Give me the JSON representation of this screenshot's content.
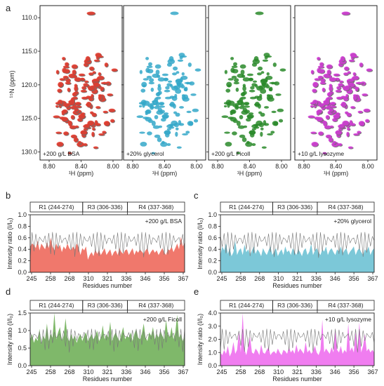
{
  "panel_letters": [
    "a",
    "b",
    "c",
    "d",
    "e"
  ],
  "nmr": {
    "ylabel": "¹⁵N (ppm)",
    "xlabel": "¹H (ppm)",
    "yticks": [
      "110.0",
      "115.0",
      "120.0",
      "125.0",
      "130.0"
    ],
    "xticks": [
      "8.80",
      "8.40",
      "8.00"
    ],
    "panels": [
      {
        "label": "+200 g/L BSA",
        "color": "#e8392c"
      },
      {
        "label": "+20% glycerol",
        "color": "#35a8c9"
      },
      {
        "label": "+200 g/L Ficoll",
        "color": "#2a8a2a"
      },
      {
        "label": "+10 g/L lysozyme",
        "color": "#d53ad8"
      }
    ]
  },
  "chart_data": [
    {
      "type": "area",
      "panel": "b",
      "label": "+200 g/L BSA",
      "color": "#f0786c",
      "ylabel": "Intensity ratio (I/I₀)",
      "xlabel": "Residues number",
      "xticks": [
        "245",
        "258",
        "268",
        "310",
        "321",
        "336",
        "346",
        "356",
        "367"
      ],
      "ylim": [
        0,
        1.0
      ],
      "yticks": [
        "0.0",
        "0.2",
        "0.4",
        "0.6",
        "0.8",
        "1.0"
      ],
      "regions": [
        "R1 (244-274)",
        "R3 (306-336)",
        "R4 (337-368)"
      ],
      "values": [
        0.45,
        0.5,
        0.48,
        0.42,
        0.55,
        0.38,
        0.5,
        0.45,
        0.4,
        0.52,
        0.42,
        0.6,
        0.45,
        0.38,
        0.5,
        0.42,
        0.48,
        0.35,
        0.45,
        0.4,
        0.5,
        0.42,
        0.38,
        0.45,
        0.4,
        0.5,
        0.44,
        0.3,
        0.42,
        0.38,
        0.45,
        0.22,
        0.3,
        0.35,
        0.28,
        0.4,
        0.32,
        0.38,
        0.3,
        0.36,
        0.42,
        0.3,
        0.35,
        0.4,
        0.28,
        0.35,
        0.38,
        0.3,
        0.42,
        0.35,
        0.32,
        0.38,
        0.4,
        0.3,
        0.36,
        0.42,
        0.3,
        0.38,
        0.34,
        0.4,
        0.36,
        0.32,
        0.38,
        0.42,
        0.3,
        0.36,
        0.4,
        0.34,
        0.38,
        0.3,
        0.36,
        0.42,
        0.35,
        0.3,
        0.4,
        0.38,
        0.45,
        0.35,
        0.42,
        0.5,
        0.4,
        0.62,
        0.45,
        0.52
      ]
    },
    {
      "type": "area",
      "panel": "c",
      "label": "+20% glycerol",
      "color": "#7cc8d8",
      "ylabel": "Intensity ratio (I/I₀)",
      "xlabel": "Residues number",
      "xticks": [
        "245",
        "258",
        "268",
        "310",
        "321",
        "336",
        "346",
        "356",
        "367"
      ],
      "ylim": [
        0,
        1.0
      ],
      "yticks": [
        "0.0",
        "0.2",
        "0.4",
        "0.6",
        "0.8",
        "1.0"
      ],
      "regions": [
        "R1 (244-274)",
        "R3 (306-336)",
        "R4 (337-368)"
      ],
      "values": [
        0.3,
        0.45,
        0.38,
        0.5,
        0.32,
        0.42,
        0.28,
        0.35,
        0.55,
        0.3,
        0.38,
        0.42,
        0.3,
        0.48,
        0.35,
        0.4,
        0.3,
        0.38,
        0.45,
        0.32,
        0.4,
        0.35,
        0.28,
        0.42,
        0.35,
        0.3,
        0.38,
        0.45,
        0.3,
        0.36,
        0.42,
        0.28,
        0.35,
        0.4,
        0.3,
        0.45,
        0.35,
        0.38,
        0.3,
        0.42,
        0.36,
        0.3,
        0.4,
        0.35,
        0.28,
        0.38,
        0.42,
        0.3,
        0.36,
        0.5,
        0.3,
        0.38,
        0.42,
        0.35,
        0.3,
        0.4,
        0.36,
        0.45,
        0.3,
        0.38,
        0.42,
        0.35,
        0.3,
        0.4,
        0.36,
        0.45,
        0.32,
        0.38,
        0.42,
        0.3,
        0.36,
        0.4,
        0.45,
        0.3,
        0.38,
        0.42,
        0.35,
        0.3,
        0.4,
        0.36,
        0.45,
        0.3,
        0.38,
        0.42
      ]
    },
    {
      "type": "area",
      "panel": "d",
      "label": "+200 g/L Ficoll",
      "color": "#7fb86a",
      "ylabel": "Intensity ratio (I/I₀)",
      "xlabel": "Residues number",
      "xticks": [
        "245",
        "258",
        "268",
        "310",
        "321",
        "336",
        "346",
        "356",
        "367"
      ],
      "ylim": [
        0,
        1.5
      ],
      "yticks": [
        "0.0",
        "0.5",
        "1.0",
        "1.5"
      ],
      "regions": [
        "R1 (244-274)",
        "R3 (306-336)",
        "R4 (337-368)"
      ],
      "values": [
        0.75,
        0.9,
        0.65,
        0.8,
        0.7,
        1.05,
        0.6,
        0.85,
        0.75,
        1.2,
        0.7,
        0.9,
        0.8,
        1.55,
        0.75,
        0.95,
        1.1,
        0.7,
        0.85,
        1.35,
        0.8,
        0.7,
        0.9,
        0.75,
        0.85,
        0.65,
        0.8,
        0.9,
        0.7,
        0.85,
        0.95,
        0.7,
        0.8,
        0.9,
        0.75,
        0.85,
        1.0,
        0.7,
        0.8,
        1.15,
        0.75,
        0.9,
        0.8,
        1.25,
        0.7,
        0.85,
        0.95,
        0.8,
        0.7,
        0.9,
        1.1,
        0.75,
        0.85,
        0.8,
        0.95,
        0.7,
        0.9,
        1.05,
        0.8,
        0.75,
        0.9,
        1.2,
        0.8,
        0.7,
        0.95,
        0.85,
        1.1,
        0.75,
        0.9,
        0.8,
        1.0,
        0.85,
        0.75,
        1.3,
        0.9,
        0.8,
        1.1,
        0.75,
        0.95,
        1.45,
        0.8,
        0.9,
        0.7,
        0.85
      ]
    },
    {
      "type": "area",
      "panel": "e",
      "label": "+10 g/L lysozyme",
      "color": "#f07df0",
      "ylabel": "Intensity ratio (I/I₀)",
      "xlabel": "Residues number",
      "xticks": [
        "245",
        "258",
        "268",
        "310",
        "321",
        "336",
        "346",
        "356",
        "367"
      ],
      "ylim": [
        0,
        4.0
      ],
      "yticks": [
        "0.0",
        "1.0",
        "2.0",
        "3.0",
        "4.0"
      ],
      "regions": [
        "R1 (244-274)",
        "R3 (306-336)",
        "R4 (337-368)"
      ],
      "values": [
        1.0,
        0.8,
        1.2,
        0.9,
        1.5,
        0.7,
        1.0,
        1.8,
        0.9,
        1.2,
        2.6,
        1.0,
        4.0,
        1.2,
        0.8,
        1.5,
        2.2,
        1.0,
        0.9,
        1.3,
        1.1,
        0.8,
        1.6,
        1.0,
        0.9,
        1.2,
        1.4,
        0.8,
        1.0,
        1.1,
        0.9,
        1.3,
        1.0,
        0.8,
        1.2,
        1.1,
        0.9,
        1.4,
        1.0,
        1.2,
        0.9,
        1.6,
        1.0,
        1.3,
        1.1,
        0.9,
        1.8,
        1.0,
        1.2,
        0.9,
        1.1,
        1.5,
        1.0,
        0.8,
        1.2,
        3.5,
        1.0,
        1.3,
        1.1,
        0.9,
        1.4,
        1.0,
        2.8,
        1.2,
        1.0,
        1.5,
        0.9,
        1.2,
        1.0,
        3.2,
        1.1,
        1.4,
        1.0,
        2.6,
        1.2,
        3.3,
        1.0,
        1.5,
        2.4,
        1.1,
        1.3,
        1.0,
        1.2,
        1.0
      ]
    }
  ]
}
